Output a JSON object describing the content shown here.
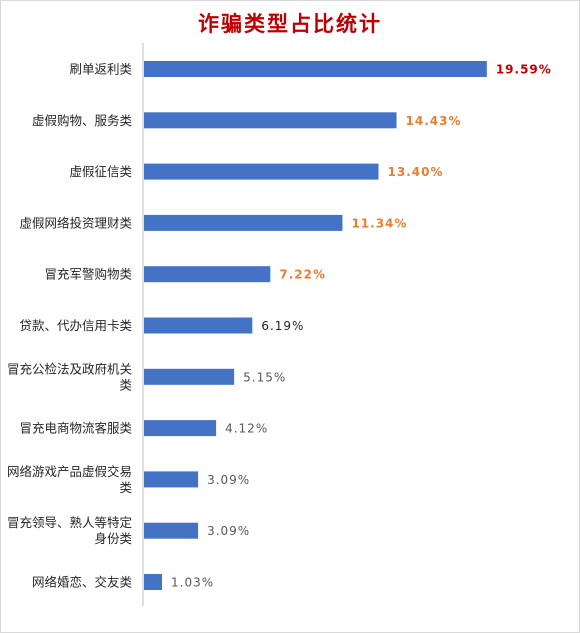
{
  "chart_data": {
    "type": "bar",
    "orientation": "horizontal",
    "title": "诈骗类型占比统计",
    "xlabel": "",
    "ylabel": "",
    "grid": false,
    "legend": "none",
    "xlim": [
      0,
      21.5
    ],
    "categories": [
      "刷单返利类",
      "虚假购物、服务类",
      "虚假征信类",
      "虚假网络投资理财类",
      "冒充军警购物类",
      "贷款、代办信用卡类",
      "冒充公检法及政府机关类",
      "冒充电商物流客服类",
      "网络游戏产品虚假交易类",
      "冒充领导、熟人等特定身份类",
      "网络婚恋、交友类"
    ],
    "values": [
      19.59,
      14.43,
      13.4,
      11.34,
      7.22,
      6.19,
      5.15,
      4.12,
      3.09,
      3.09,
      1.03
    ],
    "data_labels": [
      "19.59%",
      "14.43%",
      "13.40%",
      "11.34%",
      "7.22%",
      "6.19%",
      "5.15%",
      "4.12%",
      "3.09%",
      "3.09%",
      "1.03%"
    ],
    "colors": {
      "bar": "#4472c4",
      "title": "#c00000",
      "label_top": "#c00000",
      "label_high": "#ed7d31",
      "label_normal": "#595959",
      "label_mid": "#262626",
      "category_text": "#262626",
      "axis": "#bfbfbf"
    }
  }
}
